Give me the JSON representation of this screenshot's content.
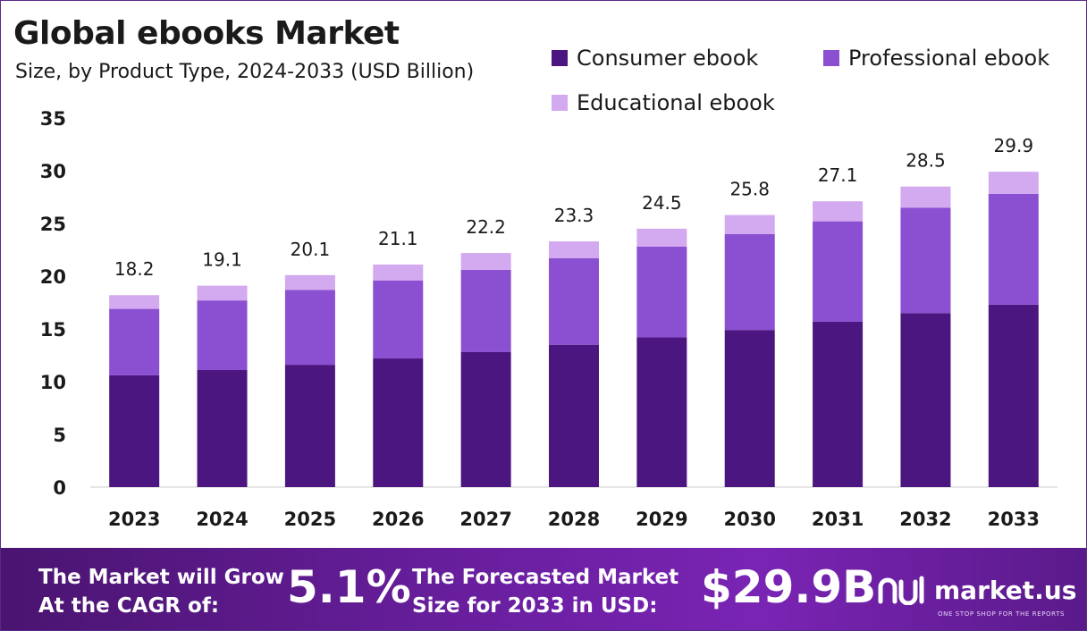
{
  "chart_data": {
    "type": "bar",
    "stacked": true,
    "title": "Global ebooks Market",
    "subtitle": "Size, by Product Type, 2024-2033 (USD Billion)",
    "categories": [
      "2023",
      "2024",
      "2025",
      "2026",
      "2027",
      "2028",
      "2029",
      "2030",
      "2031",
      "2032",
      "2033"
    ],
    "series": [
      {
        "name": "Consumer ebook",
        "color": "#4b1680",
        "values": [
          10.6,
          11.1,
          11.6,
          12.2,
          12.8,
          13.5,
          14.2,
          14.9,
          15.7,
          16.5,
          17.3
        ]
      },
      {
        "name": "Professional ebook",
        "color": "#8b4fd1",
        "values": [
          6.3,
          6.6,
          7.1,
          7.4,
          7.8,
          8.2,
          8.6,
          9.1,
          9.5,
          10.0,
          10.5
        ]
      },
      {
        "name": "Educational ebook",
        "color": "#d3a9ef",
        "values": [
          1.3,
          1.4,
          1.4,
          1.5,
          1.6,
          1.6,
          1.7,
          1.8,
          1.9,
          2.0,
          2.1
        ]
      }
    ],
    "totals": [
      "18.2",
      "19.1",
      "20.1",
      "21.1",
      "22.2",
      "23.3",
      "24.5",
      "25.8",
      "27.1",
      "28.5",
      "29.9"
    ],
    "ylim": [
      0,
      35
    ],
    "yticks": [
      0,
      5,
      10,
      15,
      20,
      25,
      30,
      35
    ],
    "xlabel": "",
    "ylabel": "",
    "grid": false,
    "legend_position": "top-right"
  },
  "footer": {
    "cagr_label_line1": "The Market will Grow",
    "cagr_label_line2": "At the CAGR of:",
    "cagr_value": "5.1%",
    "size_label_line1": "The Forecasted Market",
    "size_label_line2": "Size for 2033 in USD:",
    "size_value": "$29.9B",
    "brand_name": "market.us",
    "brand_tagline": "ONE STOP SHOP FOR THE REPORTS"
  },
  "colors": {
    "axis": "#cccccc",
    "text": "#1a1a1a",
    "footer_gradient_start": "#4a1470",
    "footer_gradient_end": "#7a24b4"
  }
}
